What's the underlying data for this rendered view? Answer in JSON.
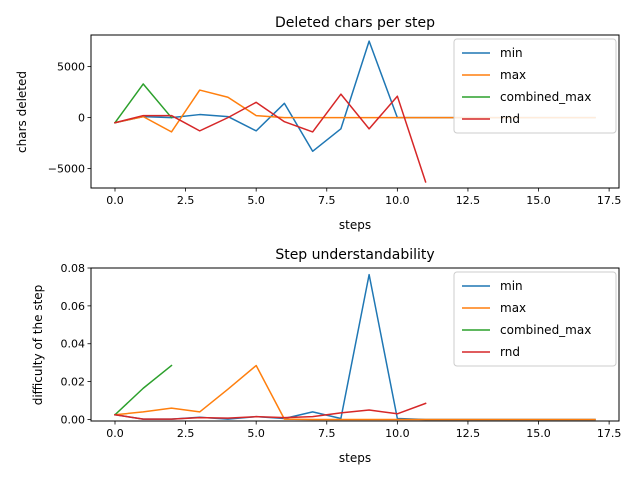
{
  "chart_data": [
    {
      "type": "line",
      "title": "Deleted chars per step",
      "xlabel": "steps",
      "ylabel": "chars deleted",
      "xlim": [
        -0.85,
        17.85
      ],
      "ylim": [
        -6900,
        8100
      ],
      "xticks": [
        0.0,
        2.5,
        5.0,
        7.5,
        10.0,
        12.5,
        15.0,
        17.5
      ],
      "xtick_labels": [
        "0.0",
        "2.5",
        "5.0",
        "7.5",
        "10.0",
        "12.5",
        "15.0",
        "17.5"
      ],
      "yticks": [
        -5000,
        0,
        5000
      ],
      "ytick_labels": [
        "−5000",
        "0",
        "5000"
      ],
      "legend_position": "top-right",
      "series": [
        {
          "name": "min",
          "color": "#1f77b4",
          "x": [
            0,
            1,
            2,
            3,
            4,
            5,
            6,
            7,
            8,
            9,
            10,
            11,
            12,
            13,
            14,
            15,
            16,
            17
          ],
          "y": [
            -500,
            100,
            0,
            300,
            100,
            -1300,
            1400,
            -3300,
            -1100,
            7500,
            0,
            0,
            0,
            0,
            0,
            0,
            0,
            0
          ]
        },
        {
          "name": "max",
          "color": "#ff7f0e",
          "x": [
            0,
            1,
            2,
            3,
            4,
            5,
            6,
            7,
            8,
            9,
            10,
            11,
            12,
            13,
            14,
            15,
            16,
            17
          ],
          "y": [
            -500,
            100,
            -1400,
            2700,
            2000,
            200,
            0,
            0,
            0,
            0,
            0,
            0,
            0,
            0,
            0,
            0,
            0,
            0
          ]
        },
        {
          "name": "combined_max",
          "color": "#2ca02c",
          "x": [
            0,
            1,
            2
          ],
          "y": [
            -500,
            3300,
            0
          ]
        },
        {
          "name": "rnd",
          "color": "#d62728",
          "x": [
            0,
            1,
            2,
            3,
            4,
            5,
            6,
            7,
            8,
            9,
            10,
            11
          ],
          "y": [
            -500,
            200,
            200,
            -1300,
            0,
            1500,
            -400,
            -1400,
            2300,
            -1100,
            2100,
            -6300
          ]
        }
      ]
    },
    {
      "type": "line",
      "title": "Step understandability",
      "xlabel": "steps",
      "ylabel": "difficulty of the step",
      "xlim": [
        -0.85,
        17.85
      ],
      "ylim": [
        -0.0008,
        0.08
      ],
      "xticks": [
        0.0,
        2.5,
        5.0,
        7.5,
        10.0,
        12.5,
        15.0,
        17.5
      ],
      "xtick_labels": [
        "0.0",
        "2.5",
        "5.0",
        "7.5",
        "10.0",
        "12.5",
        "15.0",
        "17.5"
      ],
      "yticks": [
        0.0,
        0.02,
        0.04,
        0.06,
        0.08
      ],
      "ytick_labels": [
        "0.00",
        "0.02",
        "0.04",
        "0.06",
        "0.08"
      ],
      "legend_position": "top-right",
      "series": [
        {
          "name": "min",
          "color": "#1f77b4",
          "x": [
            0,
            1,
            2,
            3,
            4,
            5,
            6,
            7,
            8,
            9,
            10,
            11,
            12,
            13,
            14,
            15,
            16,
            17
          ],
          "y": [
            0.0025,
            0.0002,
            0.0002,
            0.0012,
            0.0002,
            0.0015,
            0.0005,
            0.004,
            0.0005,
            0.0765,
            0.0005,
            0,
            0,
            0,
            0,
            0,
            0,
            0
          ]
        },
        {
          "name": "max",
          "color": "#ff7f0e",
          "x": [
            0,
            1,
            2,
            3,
            4,
            5,
            6,
            7,
            8,
            9,
            10,
            11,
            12,
            13,
            14,
            15,
            16,
            17
          ],
          "y": [
            0.0025,
            0.004,
            0.006,
            0.004,
            0.016,
            0.0285,
            0.0002,
            0,
            0,
            0,
            0,
            0,
            0,
            0,
            0,
            0,
            0,
            0
          ]
        },
        {
          "name": "combined_max",
          "color": "#2ca02c",
          "x": [
            0,
            1,
            2
          ],
          "y": [
            0.0025,
            0.0165,
            0.0285
          ]
        },
        {
          "name": "rnd",
          "color": "#d62728",
          "x": [
            0,
            1,
            2,
            3,
            4,
            5,
            6,
            7,
            8,
            9,
            10,
            11
          ],
          "y": [
            0.0025,
            0.0002,
            0.0002,
            0.001,
            0.0007,
            0.0015,
            0.001,
            0.0015,
            0.0035,
            0.005,
            0.003,
            0.0085
          ]
        }
      ]
    }
  ]
}
